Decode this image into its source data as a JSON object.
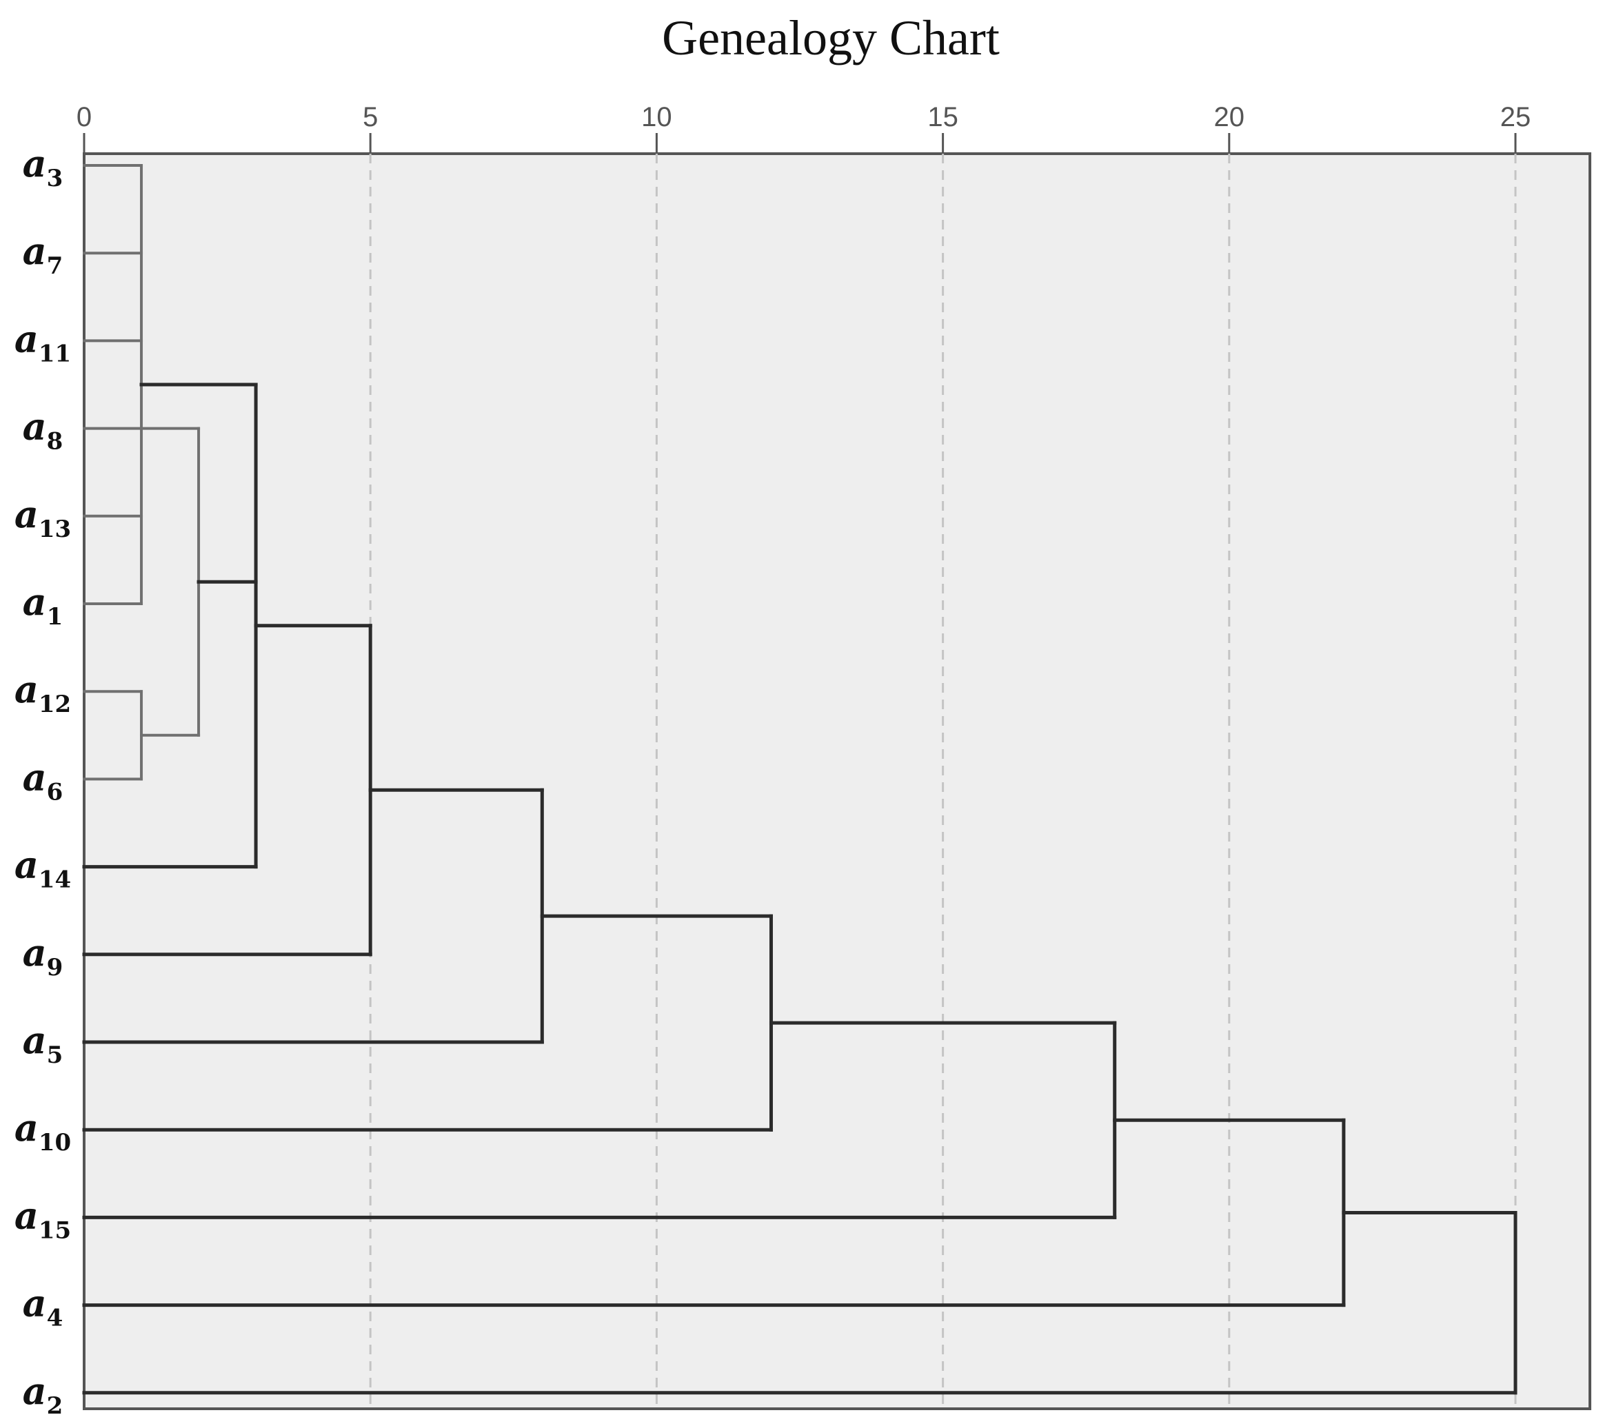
{
  "chart_data": {
    "type": "dendrogram",
    "title": "Genealogy Chart",
    "xlabel": "",
    "ylabel": "",
    "xlim": [
      0,
      26.3
    ],
    "x_ticks": [
      0,
      5,
      10,
      15,
      20,
      25
    ],
    "grid": true,
    "grid_style": "dashed-vertical",
    "colors": {
      "background": "#eeeeee",
      "frame": "#555555",
      "grid": "#c4c4c4",
      "link_light": "#707070",
      "link_dark": "#2b2b2b"
    },
    "leaves": [
      {
        "id": "a3",
        "base": "a",
        "sub": "3"
      },
      {
        "id": "a7",
        "base": "a",
        "sub": "7"
      },
      {
        "id": "a11",
        "base": "a",
        "sub": "11"
      },
      {
        "id": "a8",
        "base": "a",
        "sub": "8"
      },
      {
        "id": "a13",
        "base": "a",
        "sub": "13"
      },
      {
        "id": "a1",
        "base": "a",
        "sub": "1"
      },
      {
        "id": "a12",
        "base": "a",
        "sub": "12"
      },
      {
        "id": "a6",
        "base": "a",
        "sub": "6"
      },
      {
        "id": "a14",
        "base": "a",
        "sub": "14"
      },
      {
        "id": "a9",
        "base": "a",
        "sub": "9"
      },
      {
        "id": "a5",
        "base": "a",
        "sub": "5"
      },
      {
        "id": "a10",
        "base": "a",
        "sub": "10"
      },
      {
        "id": "a15",
        "base": "a",
        "sub": "15"
      },
      {
        "id": "a4",
        "base": "a",
        "sub": "4"
      },
      {
        "id": "a2",
        "base": "a",
        "sub": "2"
      }
    ],
    "merges": [
      {
        "id": "c1",
        "height": 1,
        "children": [
          "a3",
          "a7",
          "a11",
          "a13",
          "a1"
        ]
      },
      {
        "id": "c2",
        "height": 1,
        "children": [
          "a12",
          "a6"
        ]
      },
      {
        "id": "c3",
        "height": 2,
        "children": [
          "a8",
          "c2"
        ]
      },
      {
        "id": "c4",
        "height": 3,
        "children": [
          "c1",
          "c3",
          "a14"
        ]
      },
      {
        "id": "c5",
        "height": 5,
        "children": [
          "c4",
          "a9"
        ]
      },
      {
        "id": "c6",
        "height": 8,
        "children": [
          "c5",
          "a5"
        ]
      },
      {
        "id": "c7",
        "height": 12,
        "children": [
          "c6",
          "a10"
        ]
      },
      {
        "id": "c8",
        "height": 18,
        "children": [
          "c7",
          "a15"
        ]
      },
      {
        "id": "c9",
        "height": 22,
        "children": [
          "c8",
          "a4"
        ]
      },
      {
        "id": "c10",
        "height": 25,
        "children": [
          "c9",
          "a2"
        ]
      }
    ]
  }
}
